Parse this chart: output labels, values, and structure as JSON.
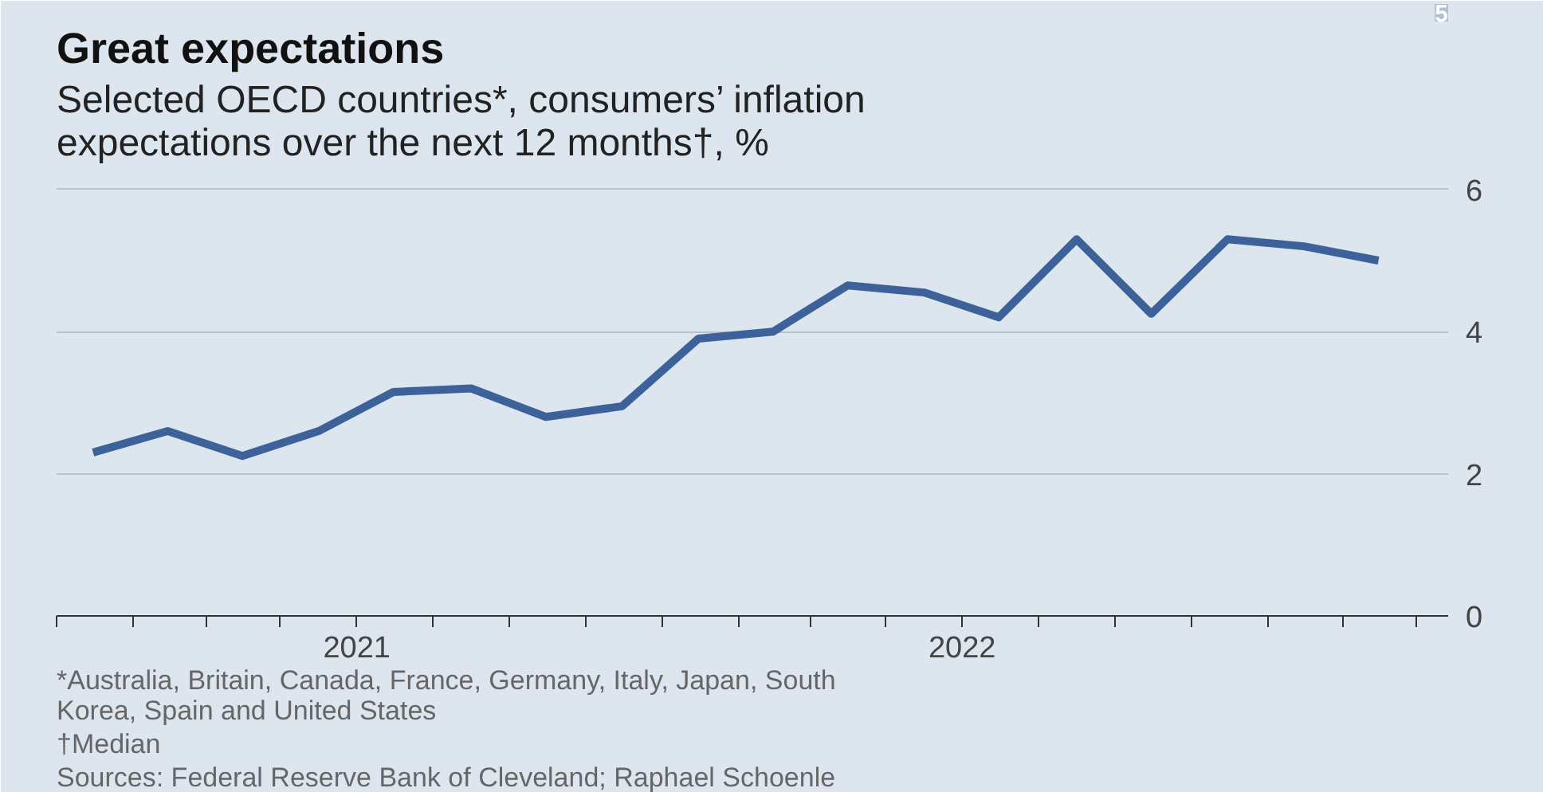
{
  "chart_data": {
    "type": "line",
    "title": "Great expectations",
    "subtitle": "Selected OECD countries*, consumers’ inflation expectations over the next 12 months†, %",
    "x": [
      "2021-01-23",
      "2021-03-09",
      "2021-04-23",
      "2021-06-08",
      "2021-07-23",
      "2021-09-08",
      "2021-10-23",
      "2021-12-08",
      "2022-01-23",
      "2022-03-09",
      "2022-04-23",
      "2022-06-08",
      "2022-07-23",
      "2022-09-08",
      "2022-10-23",
      "2022-12-08",
      "2023-01-23",
      "2023-03-09"
    ],
    "series": [
      {
        "color": "#3d6199",
        "values": [
          2.3,
          2.6,
          2.25,
          2.6,
          3.15,
          3.2,
          2.8,
          2.95,
          3.9,
          4.0,
          4.65,
          4.55,
          4.2,
          5.3,
          4.25,
          5.3,
          5.2,
          5.0
        ]
      }
    ],
    "xlim": [
      "2021-01-01",
      "2023-04-20"
    ],
    "xticks": [
      {
        "value": "2021-01-01",
        "label": null
      },
      {
        "value": "2021-02-16",
        "label": null
      },
      {
        "value": "2021-04-01",
        "label": null
      },
      {
        "value": "2021-05-16",
        "label": null
      },
      {
        "value": "2021-07-01",
        "label": "2021"
      },
      {
        "value": "2021-08-16",
        "label": null
      },
      {
        "value": "2021-10-01",
        "label": null
      },
      {
        "value": "2021-11-16",
        "label": null
      },
      {
        "value": "2022-01-01",
        "label": null
      },
      {
        "value": "2022-02-16",
        "label": null
      },
      {
        "value": "2022-04-01",
        "label": null
      },
      {
        "value": "2022-05-16",
        "label": null
      },
      {
        "value": "2022-07-01",
        "label": "2022"
      },
      {
        "value": "2022-08-16",
        "label": null
      },
      {
        "value": "2022-10-01",
        "label": null
      },
      {
        "value": "2022-11-16",
        "label": null
      },
      {
        "value": "2023-01-01",
        "label": null
      },
      {
        "value": "2023-02-16",
        "label": null
      },
      {
        "value": "2023-04-01",
        "label": null
      }
    ],
    "ylim": [
      0,
      6.3
    ],
    "yticks": [
      0,
      2,
      4,
      6
    ],
    "grid": "y",
    "marker": "none",
    "line_style": "solid",
    "annotations": [
      "5",
      "*Australia, Britain, Canada, France, Germany, Italy, Japan, South Korea, Spain and United States",
      "†Median",
      "Sources: Federal Reserve Bank of Cleveland; Raphael Schoenle"
    ]
  }
}
